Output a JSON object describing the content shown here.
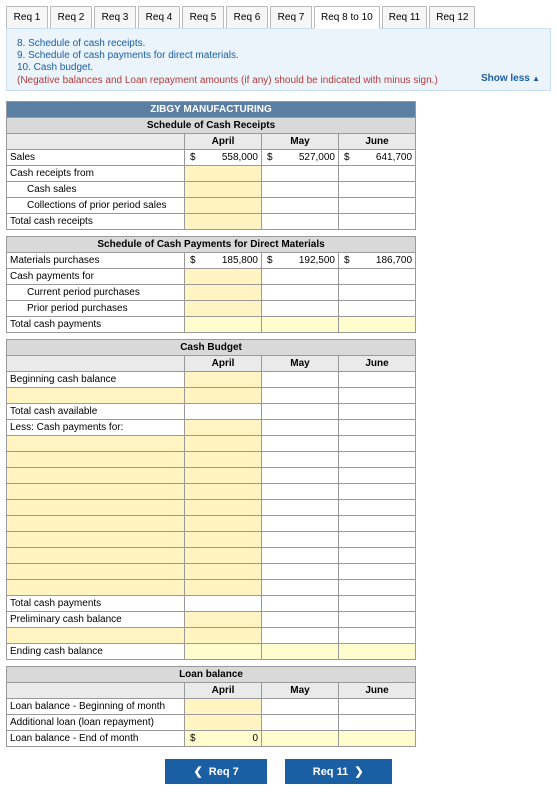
{
  "tabs": {
    "items": [
      "Req 1",
      "Req 2",
      "Req 3",
      "Req 4",
      "Req 5",
      "Req 6",
      "Req 7",
      "Req 8 to 10",
      "Req 11",
      "Req 12"
    ],
    "activeIndex": 7
  },
  "instructions": {
    "l1": "8. Schedule of cash receipts.",
    "l2": "9. Schedule of cash payments for direct materials.",
    "l3": "10. Cash budget.",
    "note": "(Negative balances and Loan repayment amounts (if any) should be indicated with minus sign.)",
    "showLess": "Show less"
  },
  "company": "ZIBGY MANUFACTURING",
  "months": {
    "m1": "April",
    "m2": "May",
    "m3": "June"
  },
  "receipts": {
    "title": "Schedule of Cash Receipts",
    "sales": {
      "label": "Sales",
      "apr": "558,000",
      "may": "527,000",
      "jun": "641,700"
    },
    "from": "Cash receipts from",
    "cashSales": "Cash sales",
    "collections": "Collections of prior period sales",
    "total": "Total cash receipts"
  },
  "payments": {
    "title": "Schedule of Cash Payments for Direct Materials",
    "purchases": {
      "label": "Materials purchases",
      "apr": "185,800",
      "may": "192,500",
      "jun": "186,700"
    },
    "for": "Cash payments for",
    "current": "Current period purchases",
    "prior": "Prior period purchases",
    "total": "Total cash payments"
  },
  "budget": {
    "title": "Cash Budget",
    "begin": "Beginning cash balance",
    "avail": "Total cash available",
    "less": "Less: Cash payments for:",
    "totPay": "Total cash payments",
    "prelim": "Preliminary cash balance",
    "ending": "Ending cash balance"
  },
  "loan": {
    "title": "Loan balance",
    "begin": "Loan balance - Beginning of month",
    "addl": "Additional loan (loan repayment)",
    "end": "Loan balance - End of month",
    "endApr": "0"
  },
  "nav": {
    "prev": "Req 7",
    "next": "Req 11"
  },
  "colors": {
    "banner": "#5b7fa3",
    "activeCell": "#fff4c2",
    "highlight": "#fffdce",
    "navBtn": "#1a5ea3",
    "instructionBg": "#ecf4fb"
  }
}
